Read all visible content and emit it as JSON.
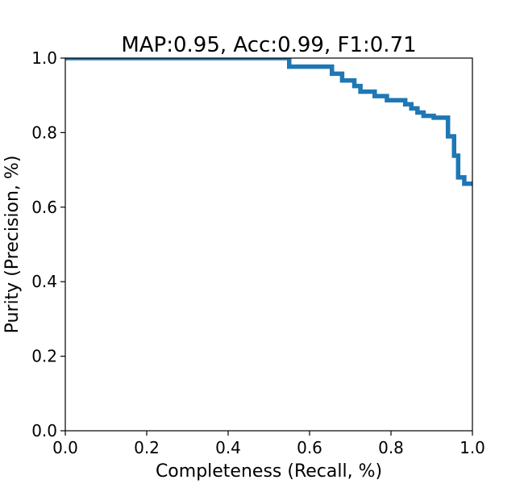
{
  "chart_data": {
    "type": "line",
    "title": "MAP:0.95, Acc:0.99, F1:0.71",
    "xlabel": "Completeness (Recall, %)",
    "ylabel": "Purity (Precision, %)",
    "xlim": [
      0.0,
      1.0
    ],
    "ylim": [
      0.0,
      1.0
    ],
    "x_ticks": [
      "0.0",
      "0.2",
      "0.4",
      "0.6",
      "0.8",
      "1.0"
    ],
    "y_ticks": [
      "0.0",
      "0.2",
      "0.4",
      "0.6",
      "0.8",
      "1.0"
    ],
    "grid": false,
    "line_color": "#1f77b4",
    "series": [
      {
        "x": [
          0.0,
          0.55,
          0.55,
          0.655,
          0.655,
          0.68,
          0.68,
          0.71,
          0.71,
          0.725,
          0.725,
          0.76,
          0.76,
          0.79,
          0.79,
          0.835,
          0.835,
          0.85,
          0.85,
          0.865,
          0.865,
          0.88,
          0.88,
          0.905,
          0.905,
          0.94,
          0.94,
          0.955,
          0.955,
          0.965,
          0.965,
          0.98,
          0.98,
          1.0
        ],
        "y": [
          1.0,
          1.0,
          0.977,
          0.977,
          0.958,
          0.958,
          0.94,
          0.94,
          0.925,
          0.925,
          0.91,
          0.91,
          0.898,
          0.898,
          0.887,
          0.887,
          0.876,
          0.876,
          0.865,
          0.865,
          0.854,
          0.854,
          0.845,
          0.845,
          0.84,
          0.84,
          0.79,
          0.79,
          0.738,
          0.738,
          0.68,
          0.68,
          0.663,
          0.663
        ]
      }
    ]
  }
}
